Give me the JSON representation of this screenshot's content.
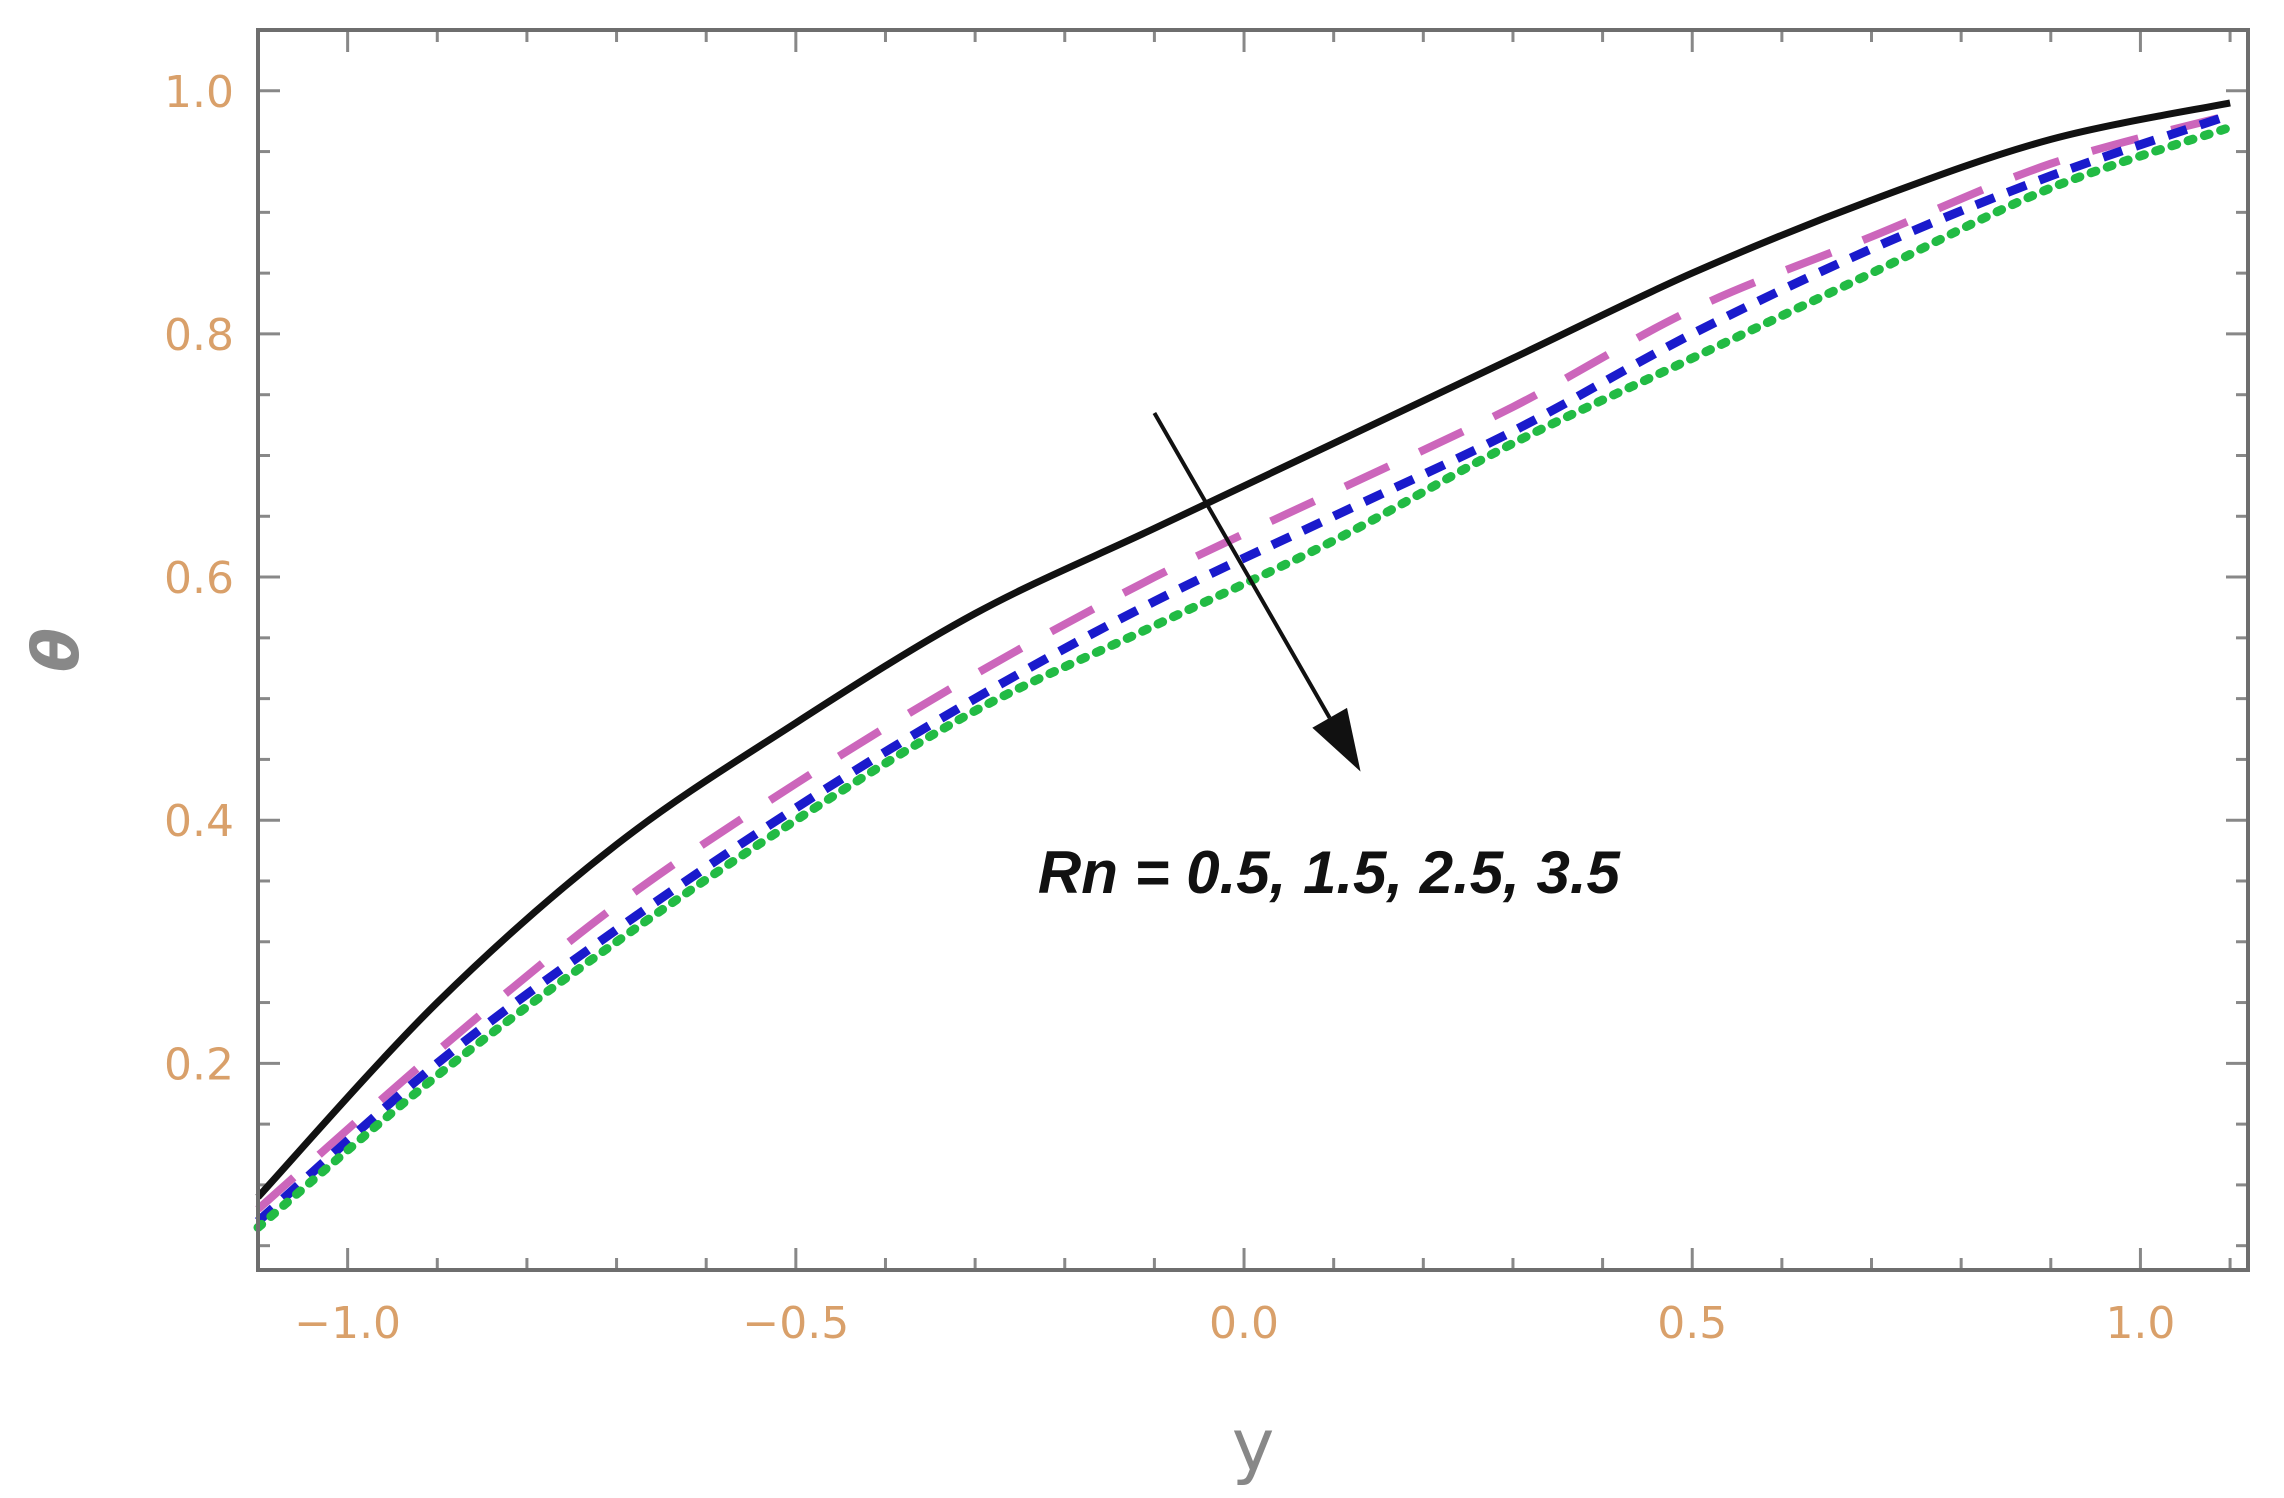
{
  "chart_data": {
    "type": "line",
    "xlabel": "y",
    "ylabel": "θ",
    "xlim": [
      -1.1,
      1.12
    ],
    "ylim": [
      0.03,
      1.05
    ],
    "x_ticks": [
      -1.0,
      -0.5,
      0.0,
      0.5,
      1.0
    ],
    "x_tick_labels": [
      "−1.0",
      "−0.5",
      "0.0",
      "0.5",
      "1.0"
    ],
    "y_ticks": [
      0.2,
      0.4,
      0.6,
      0.8,
      1.0
    ],
    "y_tick_labels": [
      "0.2",
      "0.4",
      "0.6",
      "0.8",
      "1.0"
    ],
    "grid": false,
    "annotation": {
      "text": "Rn = 0.5, 1.5, 2.5, 3.5",
      "arrow_from": [
        -0.1,
        0.735
      ],
      "arrow_to": [
        0.13,
        0.44
      ],
      "text_anchor": [
        -0.23,
        0.34
      ]
    },
    "x": [
      -1.1,
      -0.9,
      -0.7,
      -0.5,
      -0.3,
      -0.1,
      0.1,
      0.3,
      0.5,
      0.7,
      0.9,
      1.1
    ],
    "series": [
      {
        "color": "#111111",
        "style": "solid",
        "values": [
          0.09,
          0.25,
          0.38,
          0.48,
          0.57,
          0.64,
          0.71,
          0.78,
          0.85,
          0.91,
          0.96,
          0.99
        ]
      },
      {
        "color": "#cc66bb",
        "style": "dashed",
        "values": [
          0.08,
          0.21,
          0.33,
          0.43,
          0.52,
          0.6,
          0.67,
          0.74,
          0.82,
          0.88,
          0.94,
          0.98
        ]
      },
      {
        "color": "#1a1acc",
        "style": "short-dashed",
        "values": [
          0.07,
          0.2,
          0.31,
          0.41,
          0.5,
          0.58,
          0.65,
          0.72,
          0.8,
          0.87,
          0.93,
          0.98
        ]
      },
      {
        "color": "#22bb44",
        "style": "dotted",
        "values": [
          0.065,
          0.19,
          0.3,
          0.4,
          0.49,
          0.56,
          0.63,
          0.71,
          0.78,
          0.85,
          0.92,
          0.97
        ]
      }
    ]
  }
}
